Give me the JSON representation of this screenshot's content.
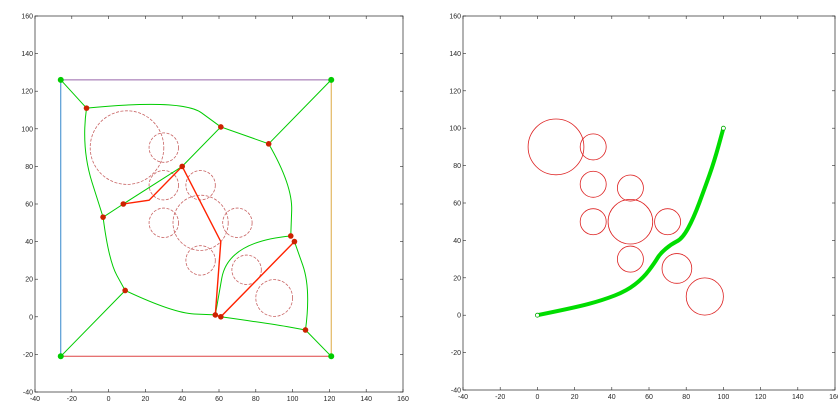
{
  "caption": "",
  "chart_data": [
    {
      "type": "scatter",
      "title": "",
      "xlabel": "",
      "ylabel": "",
      "xlim": [
        -40,
        160
      ],
      "ylim": [
        -40,
        160
      ],
      "xticks": [
        "-40",
        "-20",
        "0",
        "20",
        "40",
        "60",
        "80",
        "100",
        "120",
        "140",
        "160"
      ],
      "yticks": [
        "-40",
        "-20",
        "0",
        "20",
        "40",
        "60",
        "80",
        "100",
        "120",
        "140",
        "160"
      ],
      "grid": false,
      "legend": "none",
      "colors": {
        "voronoi": "#00cc00",
        "boundary_top": "#9966aa",
        "boundary_left": "#3388cc",
        "boundary_right": "#ddaa44",
        "boundary_bottom": "#dd4444",
        "path": "#ff2200",
        "obstacle": "#c86464",
        "node": "#cc2200",
        "corner": "#00cc00"
      },
      "obstacles": [
        {
          "cx": 10,
          "cy": 90,
          "r": 20
        },
        {
          "cx": 30,
          "cy": 90,
          "r": 8
        },
        {
          "cx": 30,
          "cy": 70,
          "r": 8
        },
        {
          "cx": 50,
          "cy": 50,
          "r": 15
        },
        {
          "cx": 50,
          "cy": 70,
          "r": 8
        },
        {
          "cx": 30,
          "cy": 50,
          "r": 8
        },
        {
          "cx": 70,
          "cy": 50,
          "r": 8
        },
        {
          "cx": 50,
          "cy": 30,
          "r": 8
        },
        {
          "cx": 75,
          "cy": 25,
          "r": 8
        },
        {
          "cx": 90,
          "cy": 10,
          "r": 10
        }
      ],
      "boundary": [
        [
          -26,
          -21
        ],
        [
          121,
          -21
        ],
        [
          121,
          126
        ],
        [
          -26,
          126
        ]
      ],
      "voronoi_nodes": [
        [
          -12,
          111
        ],
        [
          61,
          101
        ],
        [
          87,
          92
        ],
        [
          40,
          80
        ],
        [
          8,
          60
        ],
        [
          -3,
          53
        ],
        [
          99,
          43
        ],
        [
          101,
          40
        ],
        [
          9,
          14
        ],
        [
          58,
          1
        ],
        [
          61,
          0
        ],
        [
          107,
          -7
        ]
      ],
      "voronoi_edges": [
        [
          [
            -26,
            126
          ],
          [
            -12,
            111
          ]
        ],
        [
          [
            121,
            126
          ],
          [
            87,
            92
          ]
        ],
        [
          [
            -26,
            -21
          ],
          [
            9,
            14
          ]
        ],
        [
          [
            121,
            -21
          ],
          [
            107,
            -7
          ]
        ],
        [
          [
            61,
            101
          ],
          [
            40,
            80
          ]
        ],
        [
          [
            8,
            60
          ],
          [
            -3,
            53
          ]
        ],
        [
          [
            -12,
            111
          ],
          [
            -15,
            90
          ],
          [
            -3,
            53
          ]
        ],
        [
          [
            -12,
            111
          ],
          [
            40,
            116
          ],
          [
            61,
            101
          ]
        ],
        [
          [
            61,
            101
          ],
          [
            87,
            92
          ]
        ],
        [
          [
            87,
            92
          ],
          [
            100,
            70
          ],
          [
            99,
            43
          ]
        ],
        [
          [
            -3,
            53
          ],
          [
            0,
            30
          ],
          [
            9,
            14
          ]
        ],
        [
          [
            9,
            14
          ],
          [
            35,
            2
          ],
          [
            58,
            1
          ]
        ],
        [
          [
            61,
            0
          ],
          [
            90,
            -4
          ],
          [
            107,
            -7
          ]
        ],
        [
          [
            107,
            -7
          ],
          [
            110,
            15
          ],
          [
            101,
            40
          ]
        ],
        [
          [
            40,
            80
          ],
          [
            8,
            60
          ]
        ],
        [
          [
            99,
            43
          ],
          [
            65,
            40
          ],
          [
            58,
            1
          ]
        ]
      ],
      "path": [
        [
          8,
          60
        ],
        [
          22,
          62
        ],
        [
          40,
          80
        ],
        [
          61,
          40
        ],
        [
          58,
          1
        ],
        [
          61,
          0
        ],
        [
          101,
          40
        ]
      ]
    },
    {
      "type": "line",
      "title": "",
      "xlabel": "",
      "ylabel": "",
      "xlim": [
        -40,
        160
      ],
      "ylim": [
        -40,
        160
      ],
      "xticks": [
        "-40",
        "-20",
        "0",
        "20",
        "40",
        "60",
        "80",
        "100",
        "120",
        "140",
        "160"
      ],
      "yticks": [
        "-40",
        "-20",
        "0",
        "20",
        "40",
        "60",
        "80",
        "100",
        "120",
        "140",
        "160"
      ],
      "grid": false,
      "legend": "none",
      "colors": {
        "trajectory": "#00dd00",
        "obstacle": "#dd2222",
        "endpoint": "#00aa00"
      },
      "obstacles": [
        {
          "cx": 10,
          "cy": 90,
          "r": 15
        },
        {
          "cx": 30,
          "cy": 90,
          "r": 7
        },
        {
          "cx": 30,
          "cy": 70,
          "r": 7
        },
        {
          "cx": 50,
          "cy": 50,
          "r": 12
        },
        {
          "cx": 50,
          "cy": 68,
          "r": 7
        },
        {
          "cx": 30,
          "cy": 50,
          "r": 7
        },
        {
          "cx": 70,
          "cy": 50,
          "r": 7
        },
        {
          "cx": 50,
          "cy": 30,
          "r": 7
        },
        {
          "cx": 75,
          "cy": 25,
          "r": 8
        },
        {
          "cx": 90,
          "cy": 10,
          "r": 10
        }
      ],
      "trajectory": [
        [
          0,
          0
        ],
        [
          20,
          4
        ],
        [
          35,
          8
        ],
        [
          48,
          13
        ],
        [
          57,
          20
        ],
        [
          63,
          28
        ],
        [
          66,
          33
        ],
        [
          72,
          38
        ],
        [
          78,
          41
        ],
        [
          84,
          52
        ],
        [
          90,
          68
        ],
        [
          95,
          82
        ],
        [
          100,
          100
        ]
      ],
      "start": [
        0,
        0
      ],
      "goal": [
        100,
        100
      ]
    }
  ]
}
